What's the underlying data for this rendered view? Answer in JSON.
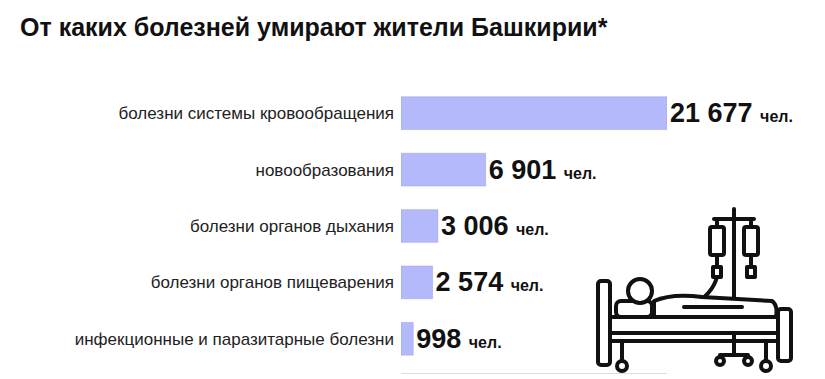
{
  "chart_data": {
    "type": "bar",
    "orientation": "horizontal",
    "title": "От каких болезней умирают жители Башкирии*",
    "categories": [
      "болезни системы кровообращения",
      "новообразования",
      "болезни органов дыхания",
      "болезни органов пищеварения",
      "инфекционные и паразитарные болезни"
    ],
    "values": [
      21677,
      6901,
      3006,
      2574,
      998
    ],
    "value_labels": [
      "21 677 чел.",
      "6 901 чел.",
      "3 006 чел.",
      "2 574 чел.",
      "998 чел."
    ],
    "color": "#b3b9fb",
    "xlim": [
      0,
      21677
    ],
    "data_labels": true,
    "tick_labels": "y",
    "grid": false
  }
}
